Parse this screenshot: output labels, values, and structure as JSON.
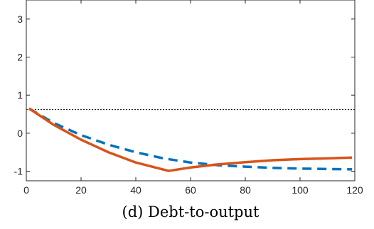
{
  "chart_data": {
    "type": "line",
    "title": "",
    "caption": "(d) Debt-to-output",
    "xlabel": "",
    "ylabel": "",
    "xlim": [
      0,
      120
    ],
    "ylim": [
      -1.25,
      3.5
    ],
    "xticks": [
      0,
      20,
      40,
      60,
      80,
      100,
      120
    ],
    "yticks": [
      -1,
      0,
      1,
      2,
      3
    ],
    "grid": false,
    "legend": "none",
    "reference_line": {
      "y": 0.62,
      "style": "dotted",
      "color": "#000000"
    },
    "series": [
      {
        "style": "solid",
        "color": "#D95319",
        "x": [
          1,
          10,
          20,
          30,
          40,
          52,
          60,
          70,
          80,
          90,
          100,
          110,
          119
        ],
        "y": [
          0.65,
          0.22,
          -0.17,
          -0.5,
          -0.77,
          -0.99,
          -0.9,
          -0.82,
          -0.76,
          -0.71,
          -0.68,
          -0.66,
          -0.64
        ]
      },
      {
        "style": "dashed",
        "color": "#0072BD",
        "x": [
          1,
          10,
          20,
          30,
          40,
          50,
          60,
          70,
          80,
          90,
          100,
          110,
          119
        ],
        "y": [
          0.65,
          0.27,
          -0.05,
          -0.3,
          -0.5,
          -0.66,
          -0.77,
          -0.84,
          -0.88,
          -0.91,
          -0.93,
          -0.94,
          -0.95
        ]
      }
    ]
  }
}
